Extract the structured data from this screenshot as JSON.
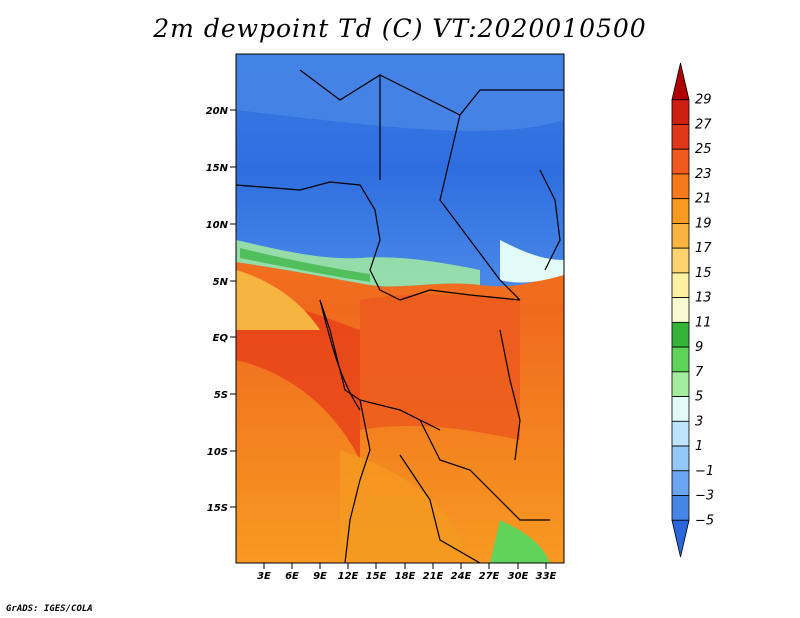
{
  "title": "2m dewpoint Td (C) VT:2020010500",
  "credit": "GrADS: IGES/COLA",
  "map": {
    "lat_ticks": [
      "20N",
      "15N",
      "10N",
      "5N",
      "EQ",
      "5S",
      "10S",
      "15S"
    ],
    "lon_ticks": [
      "3E",
      "6E",
      "9E",
      "12E",
      "15E",
      "18E",
      "21E",
      "24E",
      "27E",
      "30E",
      "33E"
    ]
  },
  "colorbar": {
    "labels": [
      "29",
      "27",
      "25",
      "23",
      "21",
      "19",
      "17",
      "15",
      "13",
      "11",
      "9",
      "7",
      "5",
      "3",
      "1",
      "−1",
      "−3",
      "−5"
    ],
    "colors": [
      "#b00000",
      "#cc1f10",
      "#e0361a",
      "#f05a1e",
      "#f57a1c",
      "#f79a22",
      "#f8b441",
      "#fbd46e",
      "#fcf0a3",
      "#fafad2",
      "#35b43a",
      "#5fd35a",
      "#a3eca0",
      "#e2fbf6",
      "#bde4fb",
      "#93c7f6",
      "#6aa6ef",
      "#4684e6",
      "#2a67dc"
    ]
  }
}
